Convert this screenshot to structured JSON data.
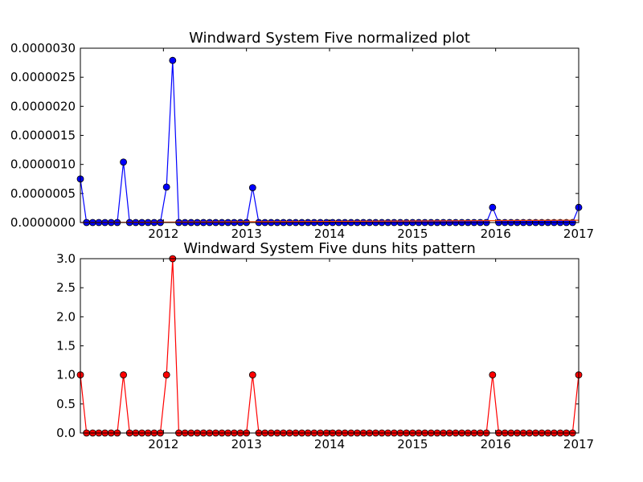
{
  "chart_data": [
    {
      "type": "line",
      "title": "Windward System Five normalized plot",
      "xlabel": "",
      "ylabel": "",
      "xlim": [
        2011.0,
        2017.0
      ],
      "ylim": [
        0,
        3e-06
      ],
      "x_ticks": [
        2012,
        2013,
        2014,
        2015,
        2016,
        2017
      ],
      "x_tick_labels": [
        "2012",
        "2013",
        "2014",
        "2015",
        "2016",
        "2017"
      ],
      "y_ticks": [
        0,
        5e-07,
        1e-06,
        1.5e-06,
        2e-06,
        2.5e-06,
        3e-06
      ],
      "y_tick_labels": [
        "0.0000000",
        "0.0000005",
        "0.0000010",
        "0.0000015",
        "0.0000020",
        "0.0000025",
        "0.0000030"
      ],
      "grid": false,
      "series": [
        {
          "color": "#0000ff",
          "marker": "circle",
          "values": [
            7.5e-07,
            0,
            0,
            0,
            0,
            0,
            0,
            1.04e-06,
            0,
            0,
            0,
            0,
            0,
            0,
            6.1e-07,
            2.79e-06,
            0,
            0,
            0,
            0,
            0,
            0,
            0,
            0,
            0,
            0,
            0,
            0,
            6e-07,
            0,
            0,
            0,
            0,
            0,
            0,
            0,
            0,
            0,
            0,
            0,
            0,
            0,
            0,
            0,
            0,
            0,
            0,
            0,
            0,
            0,
            0,
            0,
            0,
            0,
            0,
            0,
            0,
            0,
            0,
            0,
            0,
            0,
            0,
            0,
            0,
            0,
            0,
            2.6e-07,
            0,
            0,
            0,
            0,
            0,
            0,
            0,
            0,
            0,
            0,
            0,
            0,
            0,
            2.6e-07
          ]
        },
        {
          "color": "#ff4500",
          "marker": "none",
          "start": 0,
          "end": 4e-08
        }
      ]
    },
    {
      "type": "line",
      "title": "Windward System Five duns hits pattern",
      "xlabel": "",
      "ylabel": "",
      "xlim": [
        2011.0,
        2017.0
      ],
      "ylim": [
        0,
        3.0
      ],
      "x_ticks": [
        2012,
        2013,
        2014,
        2015,
        2016,
        2017
      ],
      "x_tick_labels": [
        "2012",
        "2013",
        "2014",
        "2015",
        "2016",
        "2017"
      ],
      "y_ticks": [
        0,
        0.5,
        1.0,
        1.5,
        2.0,
        2.5,
        3.0
      ],
      "y_tick_labels": [
        "0.0",
        "0.5",
        "1.0",
        "1.5",
        "2.0",
        "2.5",
        "3.0"
      ],
      "grid": false,
      "series": [
        {
          "color": "#ff0000",
          "marker": "circle",
          "values": [
            1,
            0,
            0,
            0,
            0,
            0,
            0,
            1,
            0,
            0,
            0,
            0,
            0,
            0,
            1,
            3,
            0,
            0,
            0,
            0,
            0,
            0,
            0,
            0,
            0,
            0,
            0,
            0,
            1,
            0,
            0,
            0,
            0,
            0,
            0,
            0,
            0,
            0,
            0,
            0,
            0,
            0,
            0,
            0,
            0,
            0,
            0,
            0,
            0,
            0,
            0,
            0,
            0,
            0,
            0,
            0,
            0,
            0,
            0,
            0,
            0,
            0,
            0,
            0,
            0,
            0,
            0,
            1,
            0,
            0,
            0,
            0,
            0,
            0,
            0,
            0,
            0,
            0,
            0,
            0,
            0,
            1
          ]
        }
      ]
    }
  ]
}
